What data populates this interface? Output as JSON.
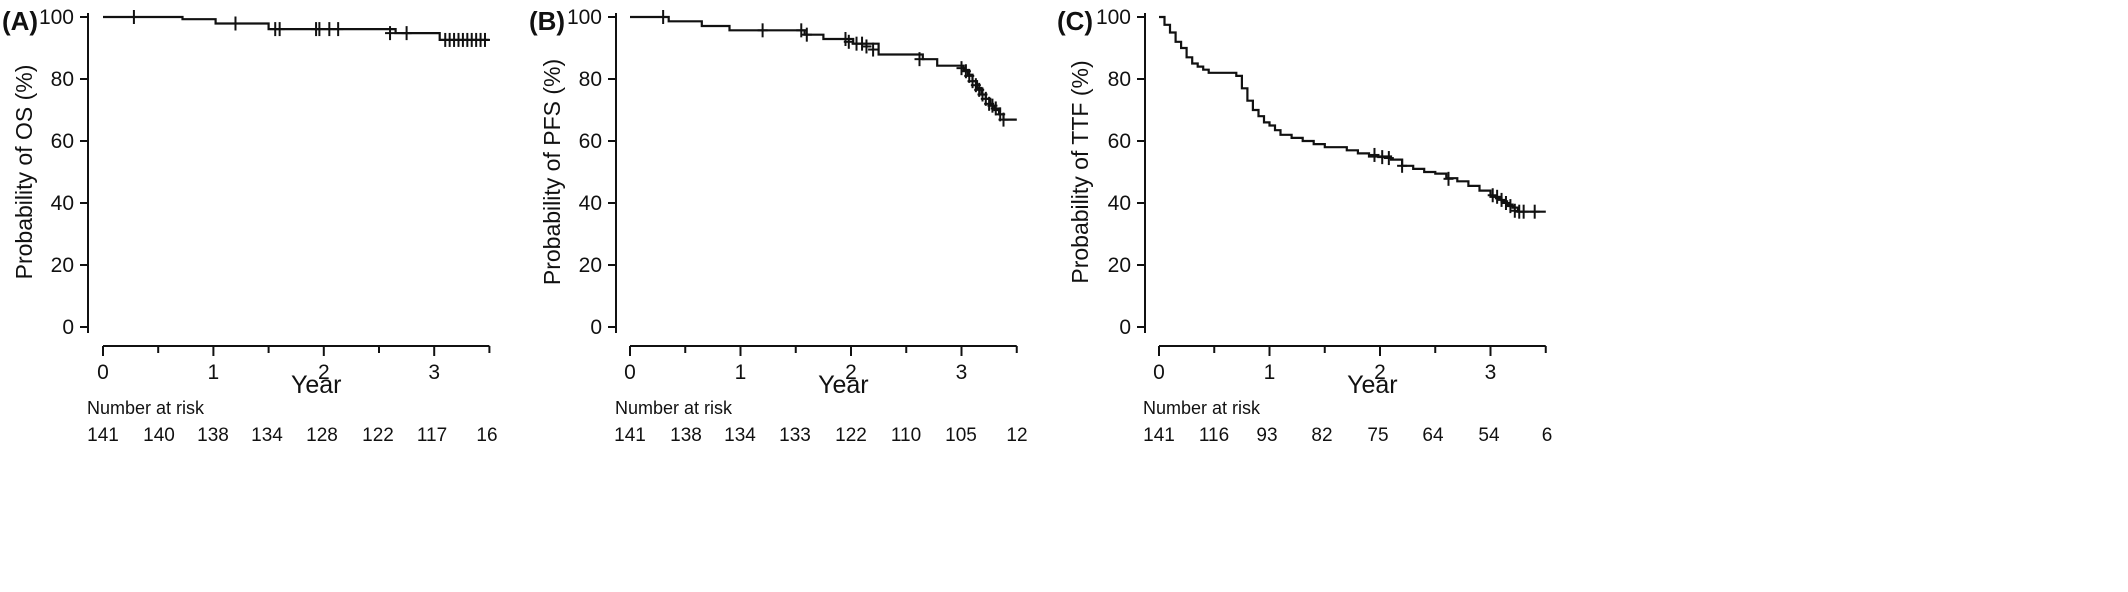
{
  "chart_data": [
    {
      "type": "line",
      "panel_label": "(A)",
      "xlabel": "Year",
      "ylabel": "Probability of OS (%)",
      "xlim": [
        0,
        3.5
      ],
      "ylim": [
        0,
        100
      ],
      "xticks": [
        "0",
        "1",
        "2",
        "3"
      ],
      "yticks": [
        "0",
        "20",
        "40",
        "60",
        "80",
        "100"
      ],
      "grid": false,
      "series": [
        {
          "x": [
            0,
            0.7,
            0.72,
            0.98,
            1.02,
            1.22,
            1.5,
            2.55,
            2.65,
            2.98,
            3.05,
            3.5
          ],
          "y": [
            100,
            100,
            99.3,
            99.3,
            97.9,
            97.9,
            96.1,
            96.1,
            94.8,
            94.8,
            92.6,
            92.6
          ],
          "censored": [
            {
              "x": 0.28,
              "y": 100
            },
            {
              "x": 1.2,
              "y": 97.9
            },
            {
              "x": 1.56,
              "y": 96.1
            },
            {
              "x": 1.6,
              "y": 96.1
            },
            {
              "x": 1.93,
              "y": 96.1
            },
            {
              "x": 1.96,
              "y": 96.1
            },
            {
              "x": 2.05,
              "y": 96.1
            },
            {
              "x": 2.13,
              "y": 96.1
            },
            {
              "x": 2.6,
              "y": 94.8
            },
            {
              "x": 2.75,
              "y": 94.8
            },
            {
              "x": 3.1,
              "y": 92.6
            },
            {
              "x": 3.14,
              "y": 92.6
            },
            {
              "x": 3.18,
              "y": 92.6
            },
            {
              "x": 3.22,
              "y": 92.6
            },
            {
              "x": 3.26,
              "y": 92.6
            },
            {
              "x": 3.3,
              "y": 92.6
            },
            {
              "x": 3.34,
              "y": 92.6
            },
            {
              "x": 3.38,
              "y": 92.6
            },
            {
              "x": 3.42,
              "y": 92.6
            },
            {
              "x": 3.46,
              "y": 92.6
            }
          ]
        }
      ],
      "risk_table": {
        "title": "Number at risk",
        "values": [
          "141",
          "140",
          "138",
          "134",
          "128",
          "122",
          "117",
          "16"
        ]
      }
    },
    {
      "type": "line",
      "panel_label": "(B)",
      "xlabel": "Year",
      "ylabel": "Probability of PFS (%)",
      "xlim": [
        0,
        3.5
      ],
      "ylim": [
        0,
        100
      ],
      "xticks": [
        "0",
        "1",
        "2",
        "3"
      ],
      "yticks": [
        "0",
        "20",
        "40",
        "60",
        "80",
        "100"
      ],
      "grid": false,
      "series": [
        {
          "x": [
            0,
            0.3,
            0.35,
            0.6,
            0.65,
            0.85,
            0.9,
            1.55,
            1.58,
            1.7,
            1.75,
            1.98,
            2.02,
            2.2,
            2.25,
            2.6,
            2.65,
            2.72,
            2.78,
            2.95,
            3.02,
            3.06,
            3.1,
            3.14,
            3.18,
            3.22,
            3.26,
            3.3,
            3.34,
            3.38,
            3.5
          ],
          "y": [
            100,
            100,
            98.6,
            98.6,
            97.1,
            97.1,
            95.7,
            95.7,
            94.3,
            94.3,
            92.9,
            92.9,
            91.4,
            91.4,
            87.9,
            87.9,
            86.4,
            86.4,
            84.3,
            84.3,
            82.9,
            81.4,
            79.3,
            77.1,
            75.0,
            73.6,
            71.4,
            70.0,
            68.6,
            66.9,
            66.9
          ],
          "censored": [
            {
              "x": 0.3,
              "y": 100
            },
            {
              "x": 1.2,
              "y": 95.7
            },
            {
              "x": 1.55,
              "y": 95.7
            },
            {
              "x": 1.6,
              "y": 94.3
            },
            {
              "x": 1.95,
              "y": 92.9
            },
            {
              "x": 1.98,
              "y": 92.0
            },
            {
              "x": 2.05,
              "y": 91.4
            },
            {
              "x": 2.1,
              "y": 91.4
            },
            {
              "x": 2.14,
              "y": 90.5
            },
            {
              "x": 2.2,
              "y": 89.5
            },
            {
              "x": 2.62,
              "y": 86.4
            },
            {
              "x": 3.0,
              "y": 83.5
            },
            {
              "x": 3.04,
              "y": 82.5
            },
            {
              "x": 3.07,
              "y": 81.0
            },
            {
              "x": 3.1,
              "y": 79.3
            },
            {
              "x": 3.13,
              "y": 78.0
            },
            {
              "x": 3.16,
              "y": 76.5
            },
            {
              "x": 3.19,
              "y": 75.0
            },
            {
              "x": 3.22,
              "y": 73.6
            },
            {
              "x": 3.25,
              "y": 72.0
            },
            {
              "x": 3.28,
              "y": 71.4
            },
            {
              "x": 3.31,
              "y": 70.5
            },
            {
              "x": 3.35,
              "y": 68.6
            },
            {
              "x": 3.38,
              "y": 66.9
            }
          ]
        }
      ],
      "risk_table": {
        "title": "Number at risk",
        "values": [
          "141",
          "138",
          "134",
          "133",
          "122",
          "110",
          "105",
          "12"
        ]
      }
    },
    {
      "type": "line",
      "panel_label": "(C)",
      "xlabel": "Year",
      "ylabel": "Probability of TTF (%)",
      "xlim": [
        0,
        3.5
      ],
      "ylim": [
        0,
        100
      ],
      "xticks": [
        "0",
        "1",
        "2",
        "3"
      ],
      "yticks": [
        "0",
        "20",
        "40",
        "60",
        "80",
        "100"
      ],
      "grid": false,
      "series": [
        {
          "x": [
            0,
            0.05,
            0.1,
            0.15,
            0.2,
            0.25,
            0.3,
            0.35,
            0.4,
            0.45,
            0.5,
            0.6,
            0.7,
            0.75,
            0.8,
            0.85,
            0.9,
            0.95,
            1.0,
            1.05,
            1.1,
            1.2,
            1.3,
            1.4,
            1.5,
            1.6,
            1.7,
            1.8,
            1.9,
            2.0,
            2.1,
            2.2,
            2.3,
            2.4,
            2.5,
            2.6,
            2.7,
            2.8,
            2.9,
            3.0,
            3.05,
            3.1,
            3.15,
            3.2,
            3.25,
            3.5
          ],
          "y": [
            100,
            97.5,
            95,
            92,
            90,
            87,
            85,
            84,
            83,
            82,
            82,
            82,
            81,
            77,
            73,
            70,
            68,
            66,
            65,
            63.5,
            62,
            61,
            60,
            59,
            58,
            58,
            57,
            56,
            55,
            55,
            54,
            52,
            51,
            50,
            49.5,
            48,
            47,
            45.5,
            44,
            42,
            41.5,
            40.5,
            39.5,
            38.5,
            37.2,
            37.2
          ],
          "censored": [
            {
              "x": 1.95,
              "y": 55.5
            },
            {
              "x": 2.02,
              "y": 54.8
            },
            {
              "x": 2.08,
              "y": 54.5
            },
            {
              "x": 2.2,
              "y": 52.0
            },
            {
              "x": 2.62,
              "y": 47.8
            },
            {
              "x": 3.02,
              "y": 42.5
            },
            {
              "x": 3.06,
              "y": 42.0
            },
            {
              "x": 3.1,
              "y": 41.0
            },
            {
              "x": 3.14,
              "y": 40.0
            },
            {
              "x": 3.18,
              "y": 39.0
            },
            {
              "x": 3.22,
              "y": 37.5
            },
            {
              "x": 3.26,
              "y": 37.2
            },
            {
              "x": 3.3,
              "y": 37.2
            },
            {
              "x": 3.4,
              "y": 37.2
            }
          ]
        }
      ],
      "risk_table": {
        "title": "Number at risk",
        "values": [
          "141",
          "116",
          "93",
          "82",
          "75",
          "64",
          "54",
          "6"
        ]
      }
    }
  ]
}
